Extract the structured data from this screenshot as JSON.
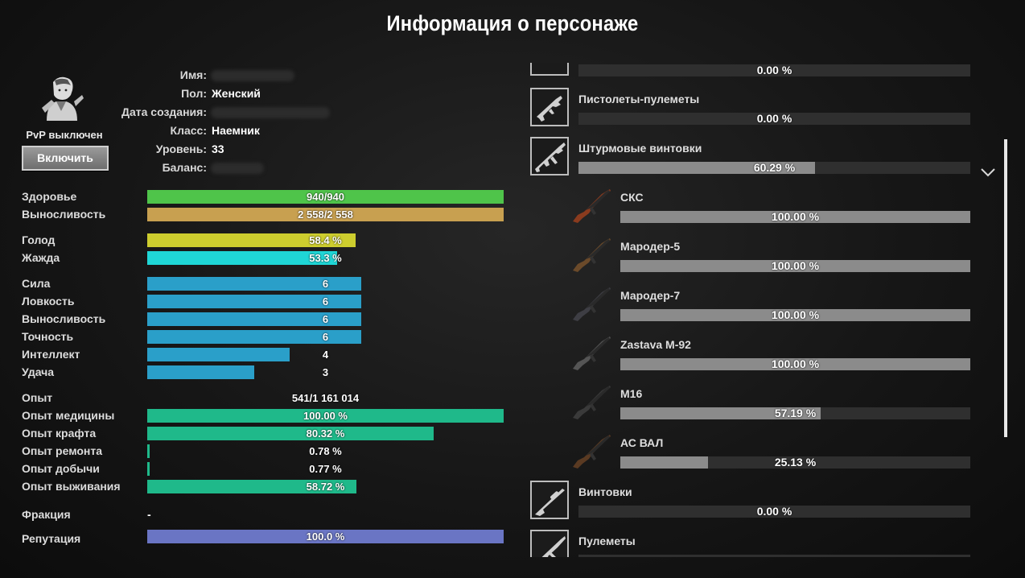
{
  "title": "Информация о персонаже",
  "profile": {
    "pvp_status": "PvP выключен",
    "pvp_button": "Включить",
    "fields": [
      {
        "label": "Имя:",
        "value": ""
      },
      {
        "label": "Пол:",
        "value": "Женский"
      },
      {
        "label": "Дата создания:",
        "value": ""
      },
      {
        "label": "Класс:",
        "value": "Наемник"
      },
      {
        "label": "Уровень:",
        "value": "33"
      },
      {
        "label": "Баланс:",
        "value": ""
      }
    ]
  },
  "stats": {
    "health": {
      "label": "Здоровье",
      "text": "940/940",
      "fraction": 1.0,
      "color": "#4fc44a"
    },
    "stamina": {
      "label": "Выносливость",
      "text": "2 558/2 558",
      "fraction": 1.0,
      "color": "#c8a050"
    },
    "hunger": {
      "label": "Голод",
      "text": "58.4 %",
      "fraction": 0.584,
      "color": "#cdcd2e"
    },
    "thirst": {
      "label": "Жажда",
      "text": "53.3 %",
      "fraction": 0.533,
      "color": "#1fd6d6"
    },
    "attributes": [
      {
        "label": "Сила",
        "value": "6",
        "level": 6
      },
      {
        "label": "Ловкость",
        "value": "6",
        "level": 6
      },
      {
        "label": "Выносливость",
        "value": "6",
        "level": 6
      },
      {
        "label": "Точность",
        "value": "6",
        "level": 6
      },
      {
        "label": "Интеллект",
        "value": "4",
        "level": 4
      },
      {
        "label": "Удача",
        "value": "3",
        "level": 3
      }
    ],
    "attribute_color": "#2a9fc9",
    "experience": {
      "label": "Опыт",
      "value": "541/1 161 014"
    },
    "skills": [
      {
        "label": "Опыт медицины",
        "text": "100.00 %",
        "fraction": 1.0
      },
      {
        "label": "Опыт крафта",
        "text": "80.32 %",
        "fraction": 0.8032
      },
      {
        "label": "Опыт ремонта",
        "text": "0.78 %",
        "fraction": 0.0078
      },
      {
        "label": "Опыт добычи",
        "text": "0.77 %",
        "fraction": 0.0077
      },
      {
        "label": "Опыт выживания",
        "text": "58.72 %",
        "fraction": 0.5872
      }
    ],
    "skill_color": "#1fb98a",
    "faction": {
      "label": "Фракция",
      "value": "-"
    },
    "reputation": {
      "label": "Репутация",
      "text": "100.0 %",
      "fraction": 1.0,
      "color": "#6a75c4"
    }
  },
  "weapons": {
    "top_partial": {
      "text": "0.00 %",
      "fraction": 0.0
    },
    "categories": [
      {
        "name": "Пистолеты-пулеметы",
        "text": "0.00 %",
        "fraction": 0.0
      },
      {
        "name": "Штурмовые винтовки",
        "text": "60.29 %",
        "fraction": 0.6029,
        "expanded": true
      }
    ],
    "items": [
      {
        "name": "СКС",
        "text": "100.00 %",
        "fraction": 1.0,
        "icon": "sks-rifle-icon",
        "stock": "#8a3b1e"
      },
      {
        "name": "Мародер-5",
        "text": "100.00 %",
        "fraction": 1.0,
        "icon": "ak-rifle-icon",
        "stock": "#6b4a2a"
      },
      {
        "name": "Мародер-7",
        "text": "100.00 %",
        "fraction": 1.0,
        "icon": "ak-rifle-icon",
        "stock": "#3e3e44"
      },
      {
        "name": "Zastava M-92",
        "text": "100.00 %",
        "fraction": 1.0,
        "icon": "ak-rifle-icon",
        "stock": "#555555"
      },
      {
        "name": "M16",
        "text": "57.19 %",
        "fraction": 0.5719,
        "icon": "m16-rifle-icon",
        "stock": "#3a3a3a"
      },
      {
        "name": "АС ВАЛ",
        "text": "25.13 %",
        "fraction": 0.2513,
        "icon": "as-val-rifle-icon",
        "stock": "#5a3a22"
      }
    ],
    "after": [
      {
        "name": "Винтовки",
        "text": "0.00 %",
        "fraction": 0.0
      },
      {
        "name": "Пулеметы",
        "text": "",
        "fraction": 0.0
      }
    ]
  }
}
